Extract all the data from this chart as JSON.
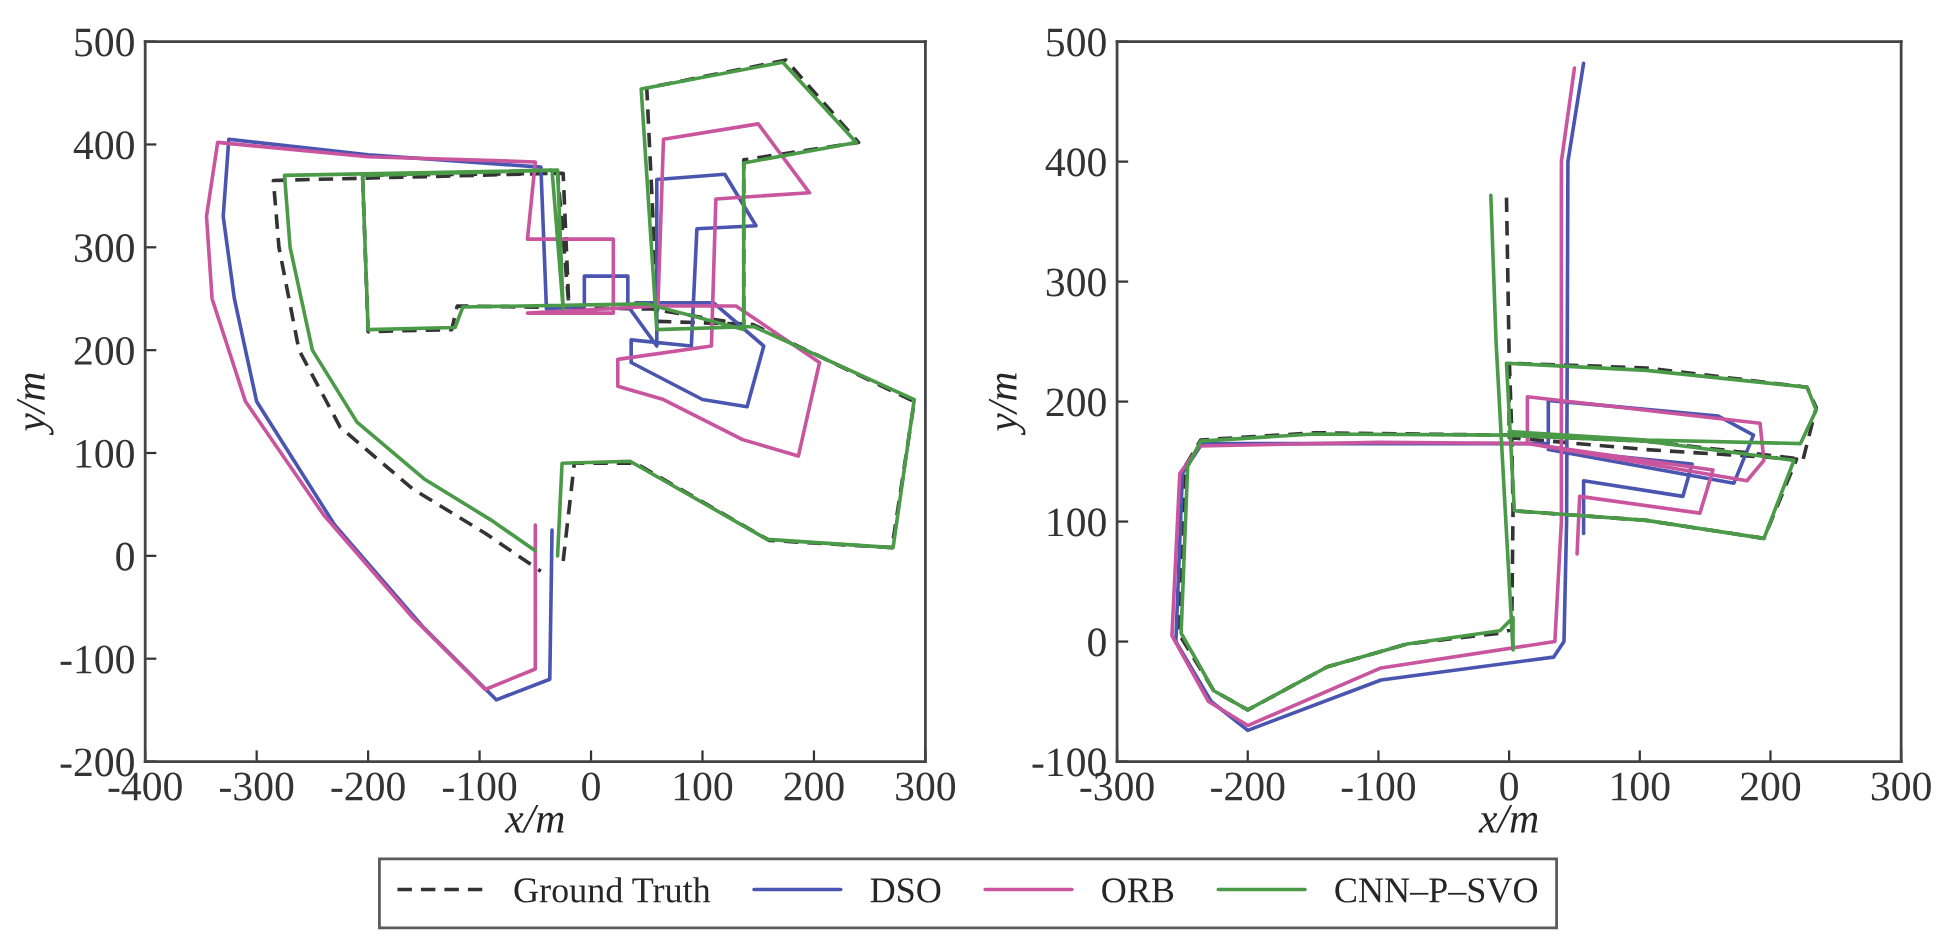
{
  "chart_data": [
    {
      "type": "line",
      "xlabel": "x/m",
      "ylabel": "y/m",
      "xlim": [
        -400,
        300
      ],
      "ylim": [
        -200,
        500
      ],
      "xticks": [
        -400,
        -300,
        -200,
        -100,
        0,
        100,
        200,
        300
      ],
      "yticks": [
        -200,
        -100,
        0,
        100,
        200,
        300,
        400,
        500
      ],
      "grid": false,
      "legend": "bottom",
      "marker": "none",
      "series": [
        {
          "name": "Ground Truth",
          "color": "#333333",
          "line_style": "dashed",
          "x": [
            -25,
            -15,
            40,
            160,
            270,
            290,
            145,
            60,
            50,
            175,
            240,
            137,
            137,
            55,
            -120,
            -125,
            -200,
            -205,
            -25,
            -20,
            -30,
            -285,
            -280,
            -262,
            -225,
            -160,
            -95,
            -45
          ],
          "values": [
            -5,
            90,
            90,
            15,
            8,
            150,
            225,
            228,
            455,
            482,
            402,
            385,
            225,
            240,
            243,
            220,
            218,
            370,
            372,
            245,
            372,
            365,
            300,
            200,
            125,
            65,
            22,
            -15
          ]
        },
        {
          "name": "DSO",
          "color": "#4a55b0",
          "line_style": "solid",
          "x": [
            -35,
            -37,
            -85,
            -150,
            -230,
            -300,
            -320,
            -330,
            -325,
            -200,
            -45,
            -40,
            -6,
            -6,
            33,
            33,
            59,
            59,
            120,
            148,
            95,
            90,
            36,
            36,
            100,
            140,
            155,
            110,
            40
          ],
          "values": [
            25,
            -120,
            -140,
            -70,
            30,
            150,
            250,
            330,
            405,
            390,
            378,
            240,
            243,
            272,
            272,
            243,
            204,
            366,
            371,
            321,
            318,
            204,
            210,
            188,
            152,
            145,
            204,
            246,
            246
          ]
        },
        {
          "name": "ORB",
          "color": "#c9559f",
          "line_style": "solid",
          "x": [
            -50,
            -50,
            -95,
            -160,
            -240,
            -310,
            -340,
            -345,
            -335,
            -200,
            -50,
            -57,
            20,
            20,
            -57,
            60,
            65,
            150,
            196,
            112,
            108,
            24,
            24,
            65,
            136,
            186,
            205,
            130,
            60
          ],
          "values": [
            30,
            -110,
            -130,
            -60,
            40,
            150,
            250,
            330,
            402,
            388,
            383,
            308,
            308,
            236,
            236,
            243,
            405,
            420,
            353,
            347,
            204,
            191,
            165,
            152,
            113,
            97,
            188,
            243,
            243
          ]
        },
        {
          "name": "CNN–P–SVO",
          "color": "#4a9a48",
          "line_style": "solid",
          "x": [
            -30,
            -26,
            35,
            158,
            271,
            290,
            146,
            59,
            45,
            172,
            238,
            137,
            137,
            50,
            -115,
            -122,
            -200,
            -205,
            -30,
            -25,
            -35,
            -275,
            -270,
            -250,
            -210,
            -150,
            -90,
            -50
          ],
          "values": [
            0,
            90,
            92,
            16,
            8,
            152,
            223,
            220,
            454,
            480,
            402,
            382,
            220,
            245,
            242,
            222,
            220,
            370,
            375,
            240,
            375,
            370,
            300,
            200,
            130,
            75,
            35,
            5
          ]
        }
      ]
    },
    {
      "type": "line",
      "xlabel": "x/m",
      "ylabel": "y/m",
      "xlim": [
        -300,
        300
      ],
      "ylim": [
        -100,
        500
      ],
      "xticks": [
        -300,
        -200,
        -100,
        0,
        100,
        200,
        300
      ],
      "yticks": [
        -100,
        0,
        100,
        200,
        300,
        400,
        500
      ],
      "grid": false,
      "marker": "none",
      "series": [
        {
          "color": "#333333",
          "line_style": "dashed",
          "x": [
            -2,
            0,
            2,
            3,
            2,
            -7,
            -78,
            -139,
            -200,
            -226,
            -253,
            -248,
            -236,
            -149,
            -2,
            105,
            225,
            235,
            228,
            105,
            0,
            0,
            105,
            220,
            195,
            105,
            3
          ],
          "values": [
            370,
            240,
            175,
            109,
            10,
            7,
            -2,
            -21,
            -57,
            -41,
            7,
            146,
            168,
            174,
            172,
            167,
            152,
            195,
            212,
            228,
            232,
            170,
            160,
            152,
            86,
            101,
            109
          ]
        },
        {
          "color": "#4a55b0",
          "line_style": "solid",
          "x": [
            57,
            45,
            44,
            42,
            34,
            -98,
            -200,
            -228,
            -255,
            -250,
            -235,
            -100,
            30,
            30,
            160,
            187,
            172,
            30,
            140,
            133,
            57,
            57
          ],
          "values": [
            482,
            400,
            100,
            0,
            -13,
            -32,
            -74,
            -50,
            0,
            140,
            165,
            165,
            165,
            201,
            188,
            172,
            132,
            160,
            148,
            121,
            134,
            90
          ]
        },
        {
          "color": "#c9559f",
          "line_style": "solid",
          "x": [
            50,
            40,
            40,
            35,
            -98,
            -200,
            -230,
            -258,
            -252,
            -237,
            -100,
            14,
            14,
            192,
            195,
            182,
            14,
            156,
            146,
            54,
            52
          ],
          "values": [
            478,
            400,
            100,
            0,
            -22,
            -70,
            -50,
            5,
            140,
            163,
            166,
            165,
            204,
            182,
            151,
            134,
            165,
            143,
            107,
            121,
            73
          ]
        },
        {
          "color": "#4a9a48",
          "line_style": "solid",
          "x": [
            -14,
            -10,
            -3,
            3,
            3,
            -7,
            -78,
            -139,
            -200,
            -226,
            -251,
            -246,
            -236,
            -149,
            -2,
            105,
            218,
            195,
            105,
            4,
            -2,
            105,
            228,
            235,
            223,
            105,
            0
          ],
          "values": [
            372,
            250,
            110,
            -7,
            20,
            9,
            -2,
            -21,
            -57,
            -41,
            7,
            146,
            167,
            173,
            172,
            167,
            151,
            86,
            101,
            109,
            232,
            226,
            212,
            193,
            165,
            168,
            175
          ]
        }
      ]
    }
  ]
}
